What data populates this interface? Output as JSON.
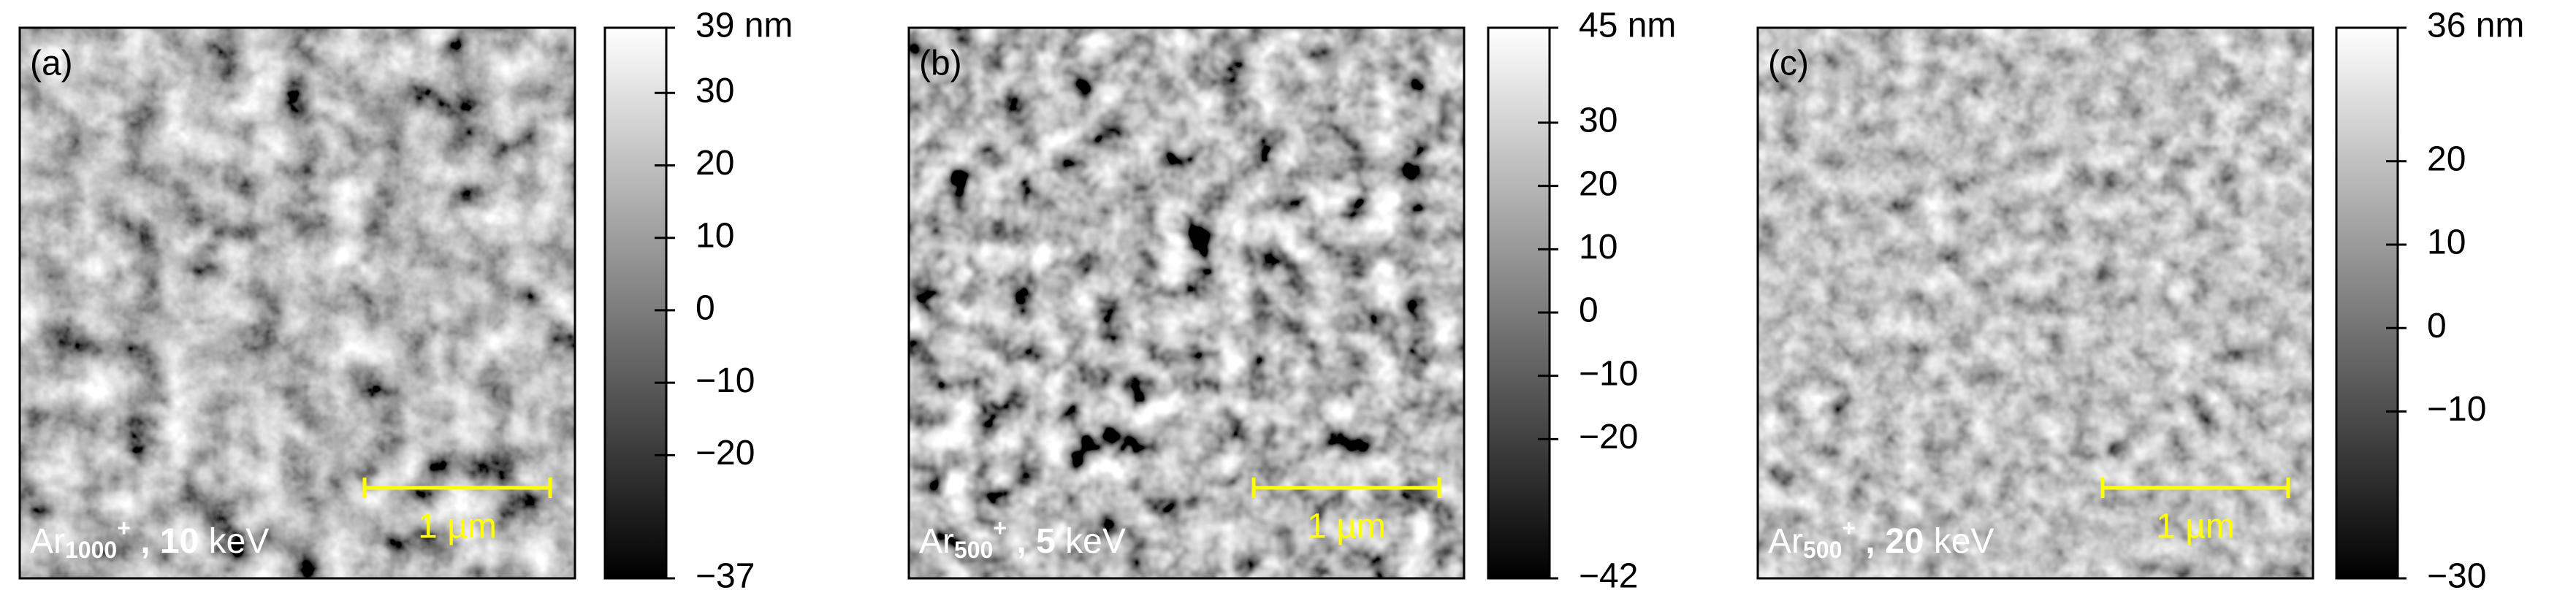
{
  "panels": [
    {
      "label": "(a)",
      "caption": {
        "ion": "Ar",
        "size": "1000",
        "charge": "+",
        "sep": " , ",
        "energy": "10",
        "unit": " keV"
      },
      "scalebar": "1 µm",
      "colorbar": {
        "lim": [
          -37,
          39
        ],
        "ticks": [
          {
            "value": 39,
            "label": "39 nm"
          },
          30,
          20,
          10,
          0,
          {
            "value": -10,
            "label": "−10"
          },
          {
            "value": -20,
            "label": "−20"
          },
          {
            "value": -37,
            "label": "−37"
          }
        ]
      }
    },
    {
      "label": "(b)",
      "caption": {
        "ion": "Ar",
        "size": "500",
        "charge": "+",
        "sep": " , ",
        "energy": "5",
        "unit": " keV"
      },
      "scalebar": "1 µm",
      "colorbar": {
        "lim": [
          -42,
          45
        ],
        "ticks": [
          {
            "value": 45,
            "label": "45 nm"
          },
          30,
          20,
          10,
          0,
          {
            "value": -10,
            "label": "−10"
          },
          {
            "value": -20,
            "label": "−20"
          },
          {
            "value": -42,
            "label": "−42"
          }
        ]
      }
    },
    {
      "label": "(c)",
      "caption": {
        "ion": "Ar",
        "size": "500",
        "charge": "+",
        "sep": " , ",
        "energy": "20",
        "unit": " keV"
      },
      "scalebar": "1 µm",
      "colorbar": {
        "lim": [
          -30,
          36
        ],
        "ticks": [
          {
            "value": 36,
            "label": "36 nm"
          },
          20,
          10,
          0,
          {
            "value": -10,
            "label": "−10"
          },
          {
            "value": -30,
            "label": "−30"
          }
        ]
      }
    }
  ]
}
